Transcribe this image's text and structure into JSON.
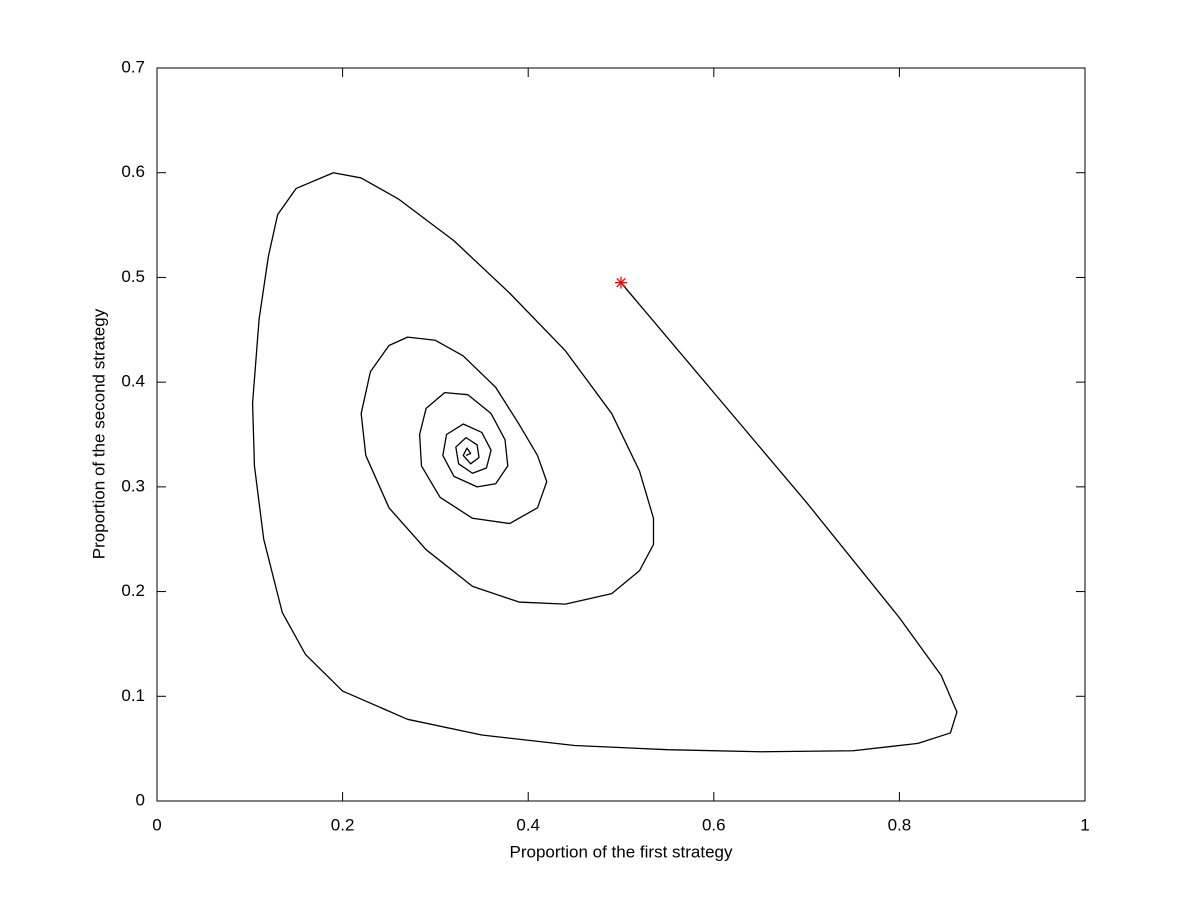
{
  "chart_data": {
    "type": "line",
    "xlabel": "Proportion of the first strategy",
    "ylabel": "Proportion of the second strategy",
    "xlim": [
      0,
      1
    ],
    "ylim": [
      0,
      0.7
    ],
    "xticks": [
      0,
      0.2,
      0.4,
      0.6,
      0.8,
      1
    ],
    "yticks": [
      0,
      0.1,
      0.2,
      0.3,
      0.4,
      0.5,
      0.6,
      0.7
    ],
    "series": [
      {
        "color": "#000000",
        "x": [
          0.5,
          0.6,
          0.7,
          0.8,
          0.845,
          0.862,
          0.855,
          0.82,
          0.75,
          0.65,
          0.55,
          0.45,
          0.35,
          0.27,
          0.2,
          0.16,
          0.135,
          0.115,
          0.105,
          0.103,
          0.11,
          0.12,
          0.13,
          0.15,
          0.19,
          0.22,
          0.26,
          0.32,
          0.38,
          0.44,
          0.49,
          0.52,
          0.535,
          0.535,
          0.52,
          0.49,
          0.44,
          0.39,
          0.34,
          0.29,
          0.25,
          0.225,
          0.22,
          0.23,
          0.25,
          0.27,
          0.3,
          0.33,
          0.365,
          0.39,
          0.41,
          0.42,
          0.41,
          0.38,
          0.34,
          0.305,
          0.285,
          0.283,
          0.29,
          0.31,
          0.335,
          0.36,
          0.375,
          0.378,
          0.365,
          0.345,
          0.32,
          0.308,
          0.312,
          0.33,
          0.35,
          0.36,
          0.355,
          0.34,
          0.325,
          0.322,
          0.333,
          0.345,
          0.347,
          0.338,
          0.33,
          0.334,
          0.338,
          0.333
        ],
        "values": [
          0.495,
          0.39,
          0.285,
          0.175,
          0.12,
          0.085,
          0.065,
          0.055,
          0.048,
          0.047,
          0.049,
          0.053,
          0.063,
          0.078,
          0.105,
          0.14,
          0.18,
          0.25,
          0.32,
          0.38,
          0.46,
          0.52,
          0.56,
          0.585,
          0.6,
          0.595,
          0.575,
          0.535,
          0.485,
          0.43,
          0.37,
          0.315,
          0.27,
          0.245,
          0.22,
          0.198,
          0.188,
          0.19,
          0.205,
          0.24,
          0.28,
          0.33,
          0.37,
          0.41,
          0.435,
          0.443,
          0.44,
          0.425,
          0.395,
          0.36,
          0.33,
          0.305,
          0.28,
          0.265,
          0.27,
          0.29,
          0.32,
          0.35,
          0.375,
          0.39,
          0.388,
          0.37,
          0.345,
          0.32,
          0.303,
          0.3,
          0.31,
          0.33,
          0.35,
          0.36,
          0.352,
          0.335,
          0.318,
          0.313,
          0.322,
          0.338,
          0.347,
          0.34,
          0.328,
          0.322,
          0.33,
          0.337,
          0.332,
          0.33
        ]
      },
      {
        "color": "#ff0000",
        "marker": "*",
        "x": [
          0.5
        ],
        "values": [
          0.495
        ]
      }
    ]
  }
}
